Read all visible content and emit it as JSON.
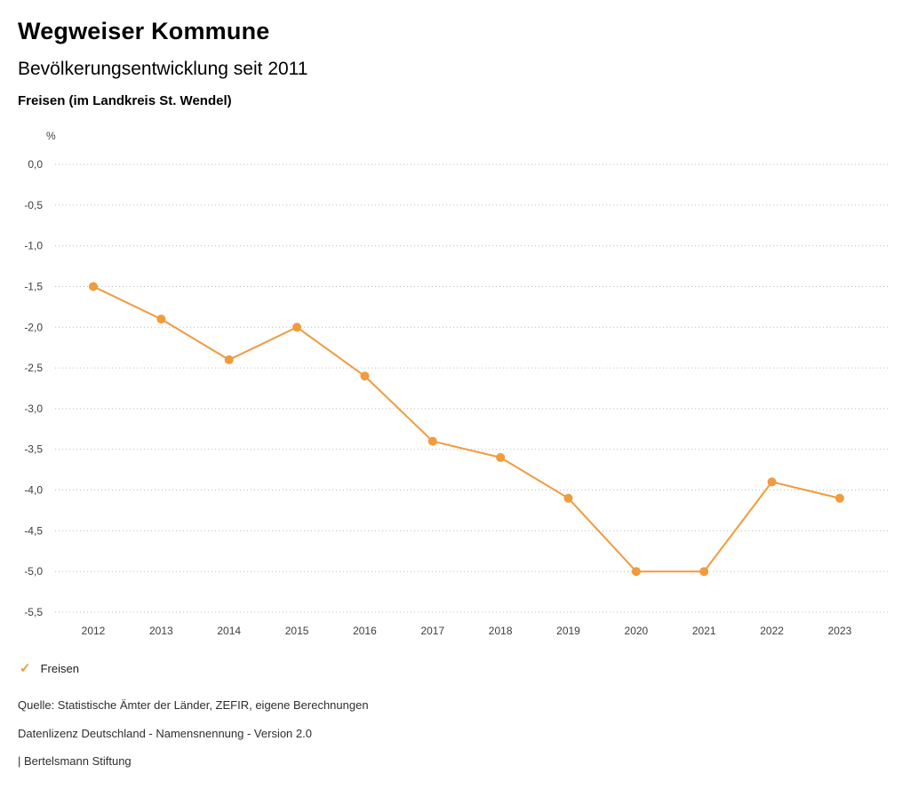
{
  "header": {
    "title": "Wegweiser Kommune",
    "subtitle": "Bevölkerungsentwicklung seit 2011",
    "region": "Freisen (im Landkreis St. Wendel)"
  },
  "chart_data": {
    "type": "line",
    "title": "Bevölkerungsentwicklung seit 2011",
    "unit": "%",
    "xlabel": "",
    "ylabel": "%",
    "categories": [
      "2012",
      "2013",
      "2014",
      "2015",
      "2016",
      "2017",
      "2018",
      "2019",
      "2020",
      "2021",
      "2022",
      "2023"
    ],
    "series": [
      {
        "name": "Freisen",
        "values": [
          -1.5,
          -1.9,
          -2.4,
          -2.0,
          -2.6,
          -3.4,
          -3.6,
          -4.1,
          -5.0,
          -5.0,
          -3.9,
          -4.1
        ],
        "color": "#f19a3e",
        "marker": "circle"
      }
    ],
    "ylim": [
      -5.5,
      0.0
    ],
    "ytick_step": 0.5,
    "ytick_labels": [
      "0,0",
      "-0,5",
      "-1,0",
      "-1,5",
      "-2,0",
      "-2,5",
      "-3,0",
      "-3,5",
      "-4,0",
      "-4,5",
      "-5,0",
      "-5,5"
    ],
    "grid": "horizontal-dotted",
    "legend_position": "bottom-left"
  },
  "legend": {
    "items": [
      {
        "label": "Freisen",
        "color": "#f19a3e",
        "marker": "check"
      }
    ]
  },
  "footer": {
    "source": "Quelle: Statistische Ämter der Länder, ZEFIR, eigene Berechnungen",
    "license": "Datenlizenz Deutschland - Namensnennung - Version 2.0",
    "attribution": "| Bertelsmann Stiftung"
  },
  "colors": {
    "series": "#f19a3e",
    "grid": "#bdbdbd",
    "axis_text": "#3d3d3d"
  }
}
